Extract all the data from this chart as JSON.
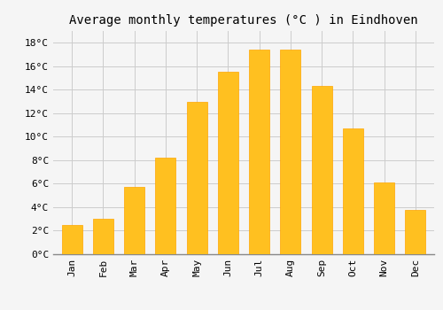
{
  "title": "Average monthly temperatures (°C ) in Eindhoven",
  "months": [
    "Jan",
    "Feb",
    "Mar",
    "Apr",
    "May",
    "Jun",
    "Jul",
    "Aug",
    "Sep",
    "Oct",
    "Nov",
    "Dec"
  ],
  "temperatures": [
    2.5,
    3.0,
    5.7,
    8.2,
    13.0,
    15.5,
    17.4,
    17.4,
    14.3,
    10.7,
    6.1,
    3.8
  ],
  "bar_color": "#FFC020",
  "bar_edge_color": "#FFA500",
  "background_color": "#F5F5F5",
  "grid_color": "#CCCCCC",
  "ylim": [
    0,
    19
  ],
  "yticks": [
    0,
    2,
    4,
    6,
    8,
    10,
    12,
    14,
    16,
    18
  ],
  "title_fontsize": 10,
  "tick_fontsize": 8,
  "font_family": "monospace"
}
